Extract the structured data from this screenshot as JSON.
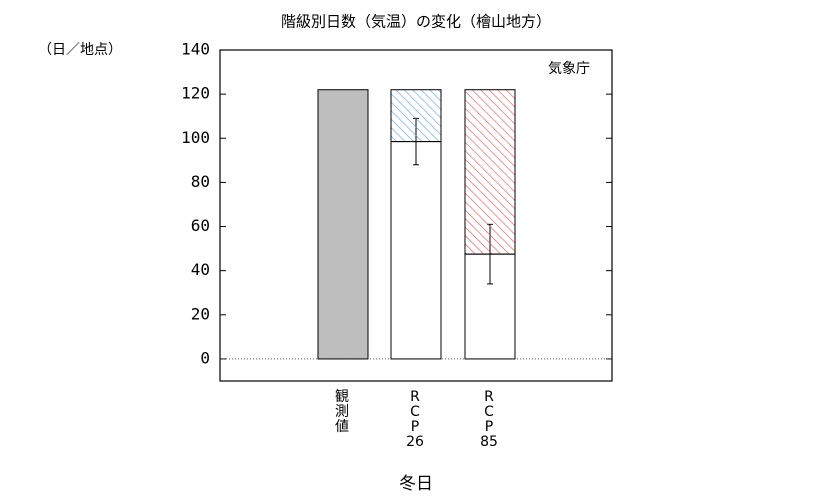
{
  "chart_data": {
    "type": "stacked-bar",
    "title": "階級別日数（気温）の変化（檜山地方）",
    "y_unit": "（日／地点）",
    "annotation": "気象庁",
    "xlabel": "冬日",
    "categories": [
      [
        "観",
        "測",
        "値"
      ],
      [
        "R",
        "C",
        "P",
        "26"
      ],
      [
        "R",
        "C",
        "P",
        "85"
      ]
    ],
    "series": [
      {
        "colors": [
          "#bebebe",
          "#ffffff",
          "#ffffff"
        ],
        "values": [
          122,
          98.5,
          47.5
        ],
        "errors": [
          null,
          10.5,
          13.5
        ]
      },
      {
        "colors": [
          null,
          "#5b9bd5",
          "#d9534f"
        ],
        "hatch": true,
        "values": [
          null,
          23.5,
          74.5
        ]
      }
    ],
    "ylim": [
      -10,
      140
    ],
    "yticks": [
      0,
      20,
      40,
      60,
      80,
      100,
      120,
      140
    ]
  }
}
